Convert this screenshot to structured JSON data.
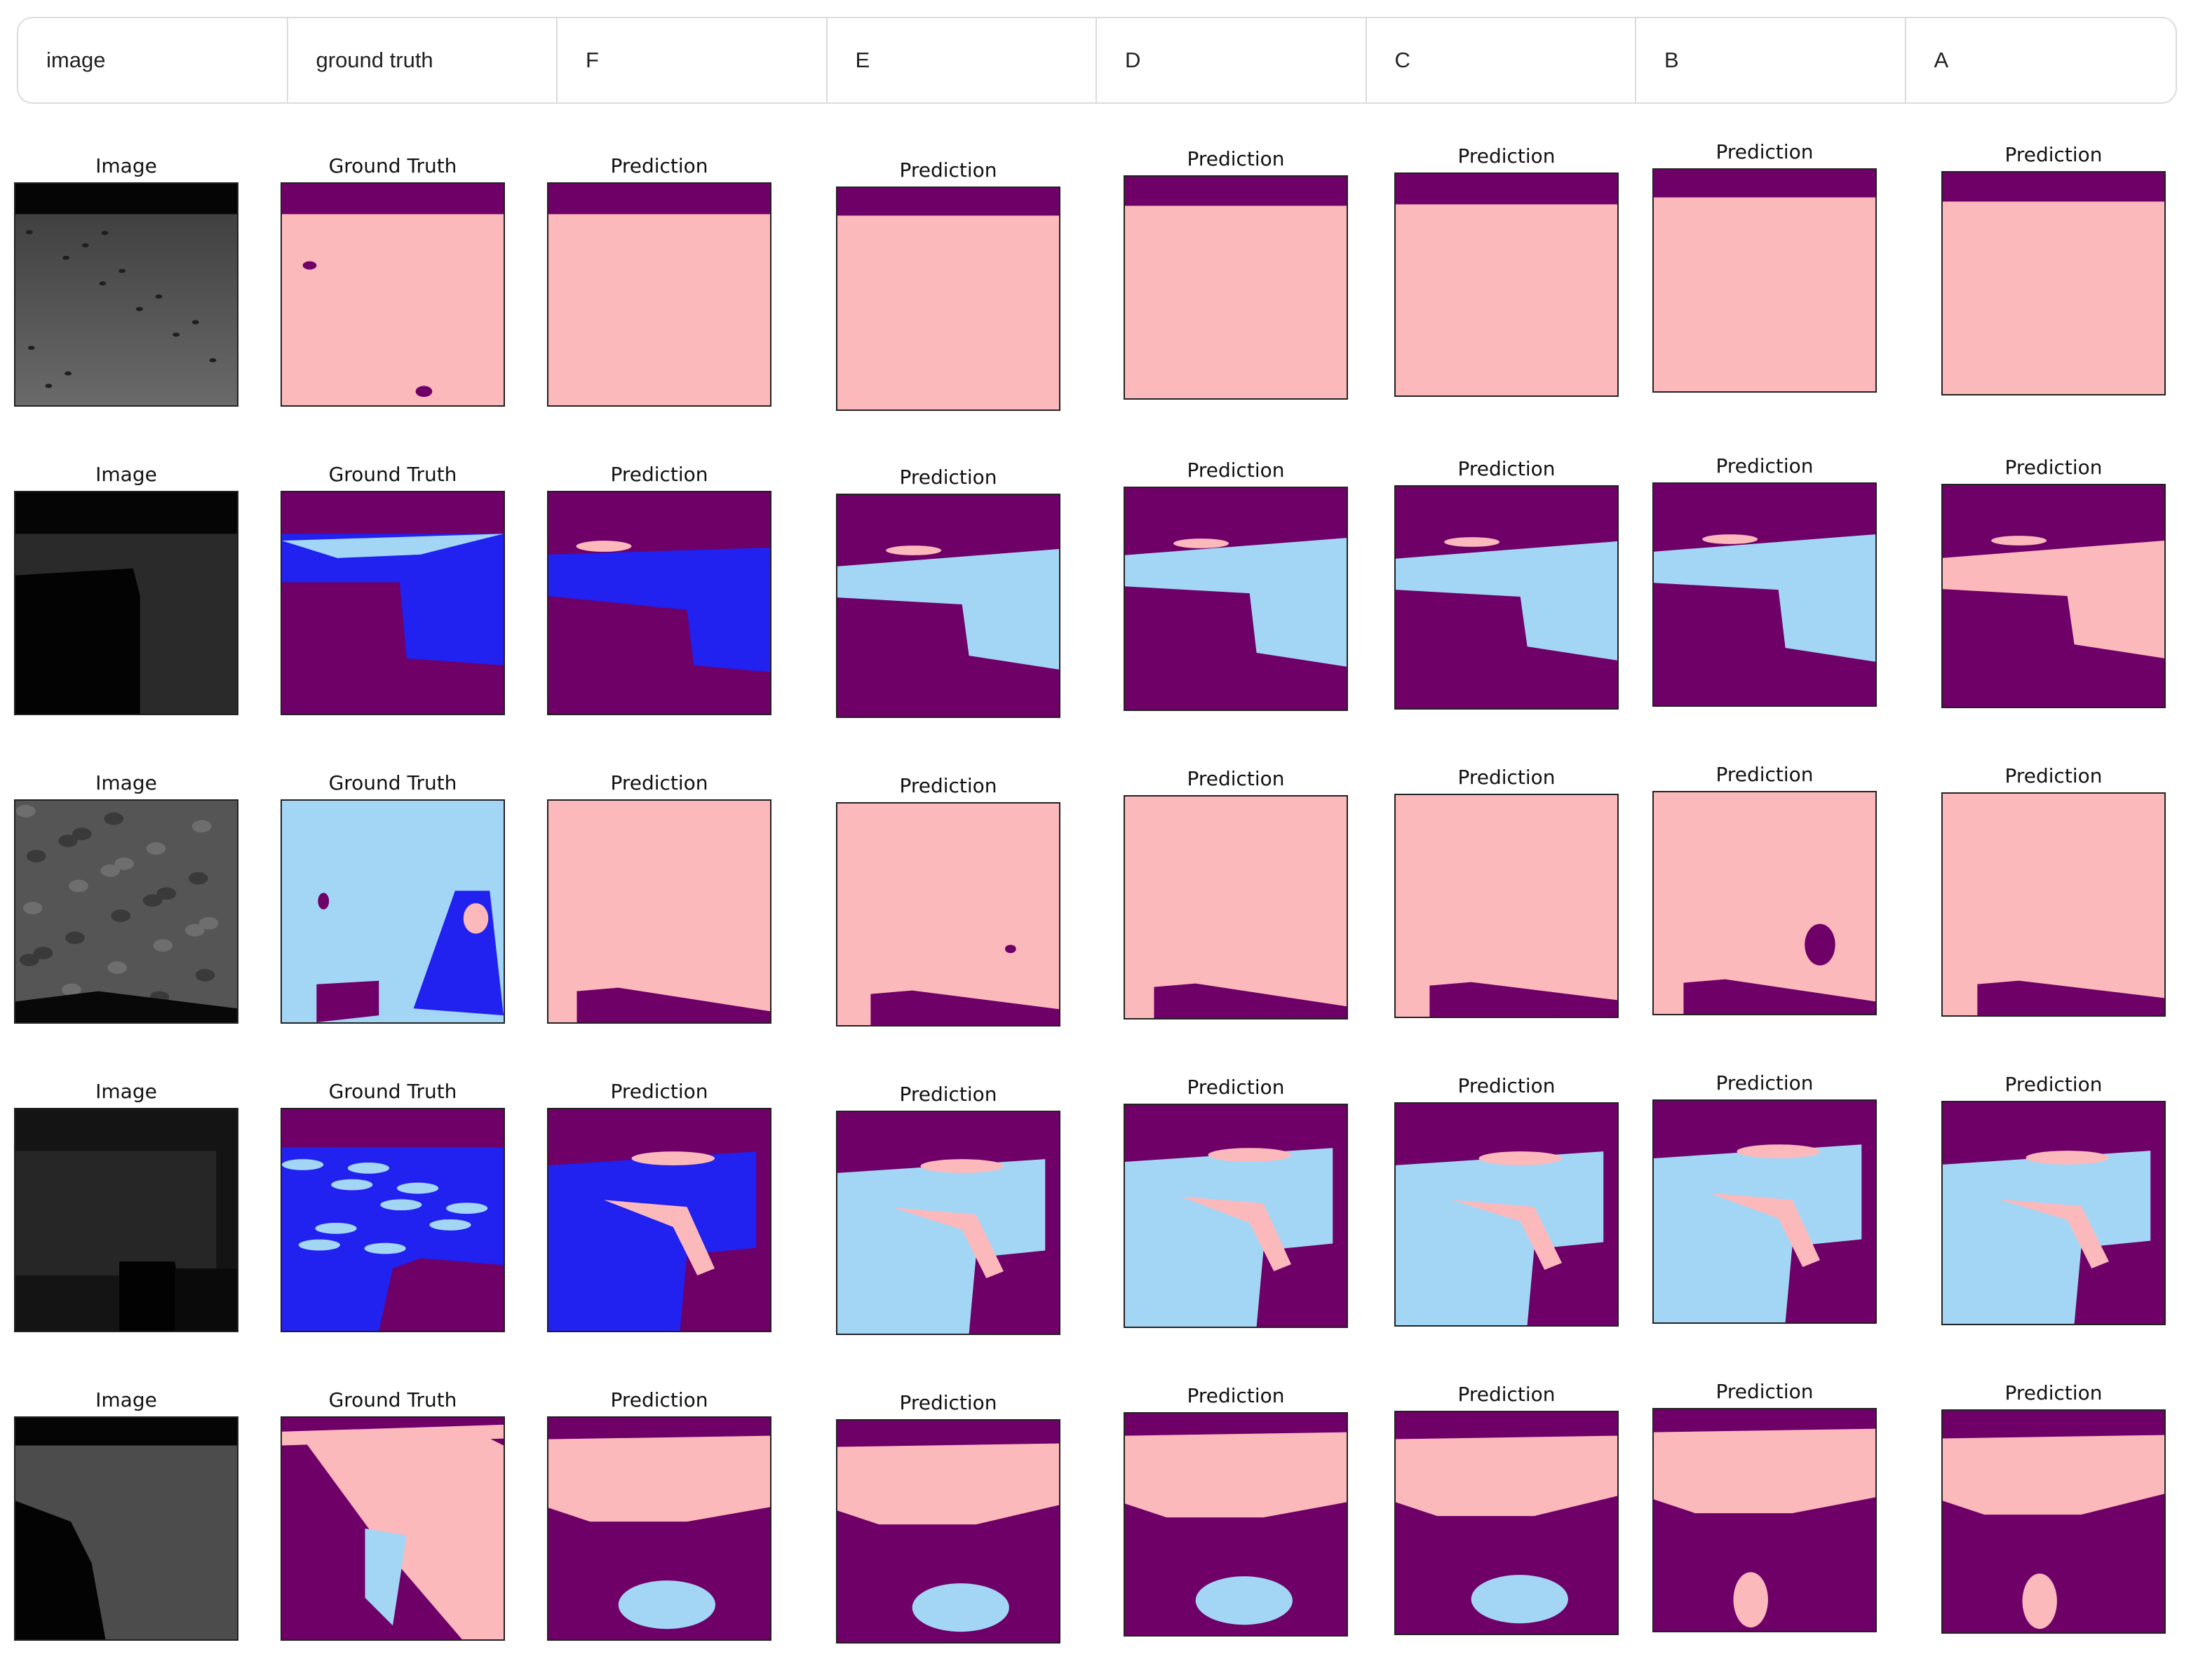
{
  "header": {
    "columns": [
      "image",
      "ground truth",
      "F",
      "E",
      "D",
      "C",
      "B",
      "A"
    ]
  },
  "panel_titles": {
    "image": "Image",
    "ground_truth": "Ground Truth",
    "prediction": "Prediction"
  },
  "colors": {
    "sky": "#6e0068",
    "soil": "#fcb9bc",
    "bedrock": "#a3d6f5",
    "sand": "#2121f0",
    "photo_dark": "#1a1a1a",
    "photo_mid": "#4a4a4a"
  },
  "rows": [
    {
      "id": "row-1",
      "scene": "flat-plain"
    },
    {
      "id": "row-2",
      "scene": "rover-shadow-plain"
    },
    {
      "id": "row-3",
      "scene": "rocky-bedrock"
    },
    {
      "id": "row-4",
      "scene": "dark-terrain-patches"
    },
    {
      "id": "row-5",
      "scene": "slope-with-shadow"
    }
  ]
}
